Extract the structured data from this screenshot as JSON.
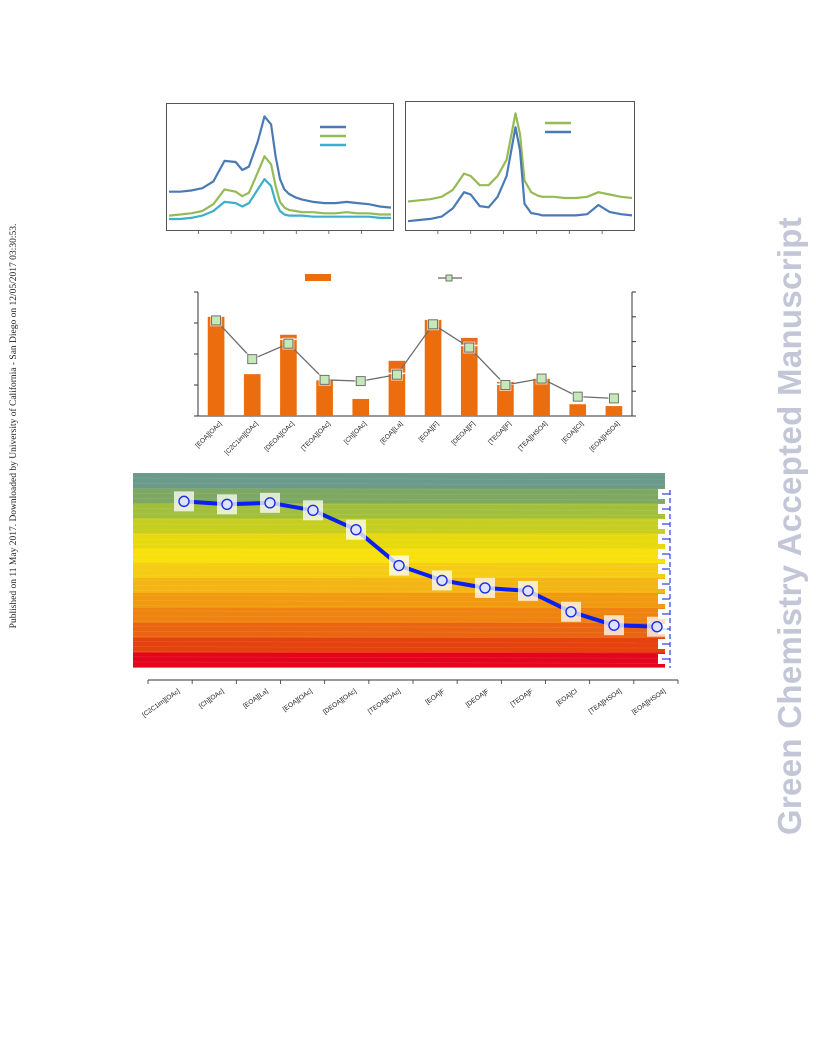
{
  "side_note": "Published on 11 May 2017. Downloaded by University of California - San Diego on 12/05/2017 03:30:53.",
  "watermark": "Green Chemistry Accepted Manuscript",
  "colors": {
    "blue": "#4a7ab5",
    "green": "#96ba56",
    "cyan": "#3eaecd",
    "orange": "#ec6d0d",
    "square": "#c5e8b7",
    "dark_blue": "#0a1ff0"
  },
  "chart_data": [
    {
      "type": "line",
      "panel": "spectra-left",
      "x": [
        0,
        0.05,
        0.1,
        0.15,
        0.2,
        0.25,
        0.3,
        0.33,
        0.36,
        0.4,
        0.43,
        0.46,
        0.48,
        0.5,
        0.52,
        0.54,
        0.57,
        0.6,
        0.65,
        0.7,
        0.75,
        0.8,
        0.85,
        0.9,
        0.95,
        1.0
      ],
      "series": [
        {
          "color": "#4a7ab5",
          "values": [
            0.31,
            0.31,
            0.32,
            0.34,
            0.4,
            0.58,
            0.57,
            0.5,
            0.53,
            0.75,
            0.97,
            0.9,
            0.62,
            0.42,
            0.33,
            0.29,
            0.26,
            0.24,
            0.22,
            0.21,
            0.21,
            0.22,
            0.21,
            0.2,
            0.18,
            0.17
          ]
        },
        {
          "color": "#96ba56",
          "values": [
            0.1,
            0.11,
            0.12,
            0.14,
            0.2,
            0.33,
            0.31,
            0.27,
            0.3,
            0.48,
            0.62,
            0.55,
            0.36,
            0.22,
            0.17,
            0.15,
            0.14,
            0.13,
            0.13,
            0.12,
            0.12,
            0.13,
            0.12,
            0.12,
            0.11,
            0.11
          ]
        },
        {
          "color": "#3eaecd",
          "values": [
            0.07,
            0.07,
            0.08,
            0.1,
            0.14,
            0.22,
            0.21,
            0.18,
            0.21,
            0.33,
            0.42,
            0.36,
            0.22,
            0.14,
            0.11,
            0.1,
            0.1,
            0.1,
            0.09,
            0.09,
            0.09,
            0.09,
            0.09,
            0.09,
            0.08,
            0.08
          ]
        }
      ]
    },
    {
      "type": "line",
      "panel": "spectra-right",
      "x": [
        0,
        0.05,
        0.1,
        0.15,
        0.2,
        0.25,
        0.28,
        0.32,
        0.36,
        0.4,
        0.44,
        0.48,
        0.5,
        0.52,
        0.55,
        0.58,
        0.6,
        0.65,
        0.7,
        0.75,
        0.8,
        0.85,
        0.9,
        0.95,
        1.0
      ],
      "series": [
        {
          "color": "#96ba56",
          "values": [
            0.22,
            0.23,
            0.24,
            0.26,
            0.32,
            0.46,
            0.44,
            0.36,
            0.36,
            0.44,
            0.58,
            0.98,
            0.8,
            0.4,
            0.3,
            0.27,
            0.26,
            0.26,
            0.25,
            0.25,
            0.26,
            0.3,
            0.28,
            0.26,
            0.25
          ]
        },
        {
          "color": "#4a7ab5",
          "values": [
            0.05,
            0.06,
            0.07,
            0.09,
            0.16,
            0.3,
            0.28,
            0.18,
            0.17,
            0.26,
            0.44,
            0.86,
            0.66,
            0.2,
            0.12,
            0.11,
            0.1,
            0.1,
            0.1,
            0.1,
            0.11,
            0.19,
            0.13,
            0.11,
            0.1
          ]
        }
      ]
    },
    {
      "type": "bar",
      "categories": [
        "[EOA][OAc]",
        "[C2C1im][OAc]",
        "[DEOA][OAc]",
        "[TEOA][OAc]",
        "[Ch][OAc]",
        "[EOA][La]",
        "[EOA][F]",
        "[DEOA][F]",
        "[TEOA][F]",
        "[TEA][HSO4]",
        "[EOA][Cl]",
        "[EOA][HSO4]"
      ],
      "values": [
        3.2,
        1.35,
        2.45,
        1.15,
        0.55,
        1.35,
        3.1,
        2.25,
        1.0,
        1.2,
        0.38,
        0.32
      ],
      "extra_segment": [
        0,
        0,
        0.12,
        0,
        0,
        0.38,
        0,
        0.22,
        0.05,
        0,
        0,
        0
      ],
      "line_values": [
        3.7,
        2.2,
        2.8,
        1.4,
        1.35,
        1.6,
        3.55,
        2.65,
        1.2,
        1.45,
        0.75,
        0.68
      ],
      "ylim": [
        0,
        4
      ],
      "line_ylim": [
        0,
        4.8
      ]
    },
    {
      "type": "line",
      "categories": [
        "[C2C1im][OAc]",
        "[Ch][OAc]",
        "[EOA][La]",
        "[EOA][OAc]",
        "[DEOA][OAc]",
        "[TEOA][OAc]",
        "[EOA]F",
        "[DEOA]F",
        "[TEOA]F",
        "[EOA]Cl",
        "[TEA][HSO4]",
        "[EOA][HSO4]"
      ],
      "values": [
        11.1,
        10.9,
        11.0,
        10.5,
        9.2,
        6.8,
        5.8,
        5.3,
        5.1,
        3.7,
        2.8,
        2.7
      ],
      "ylim": [
        0,
        13
      ],
      "band_colors": [
        "#e3051b",
        "#e5420e",
        "#ea6512",
        "#ef830f",
        "#f19a10",
        "#f3b514",
        "#f5cc13",
        "#f7e00c",
        "#e6d90d",
        "#c5ce21",
        "#a2bf3c",
        "#7da862",
        "#6b9a8a"
      ]
    }
  ]
}
